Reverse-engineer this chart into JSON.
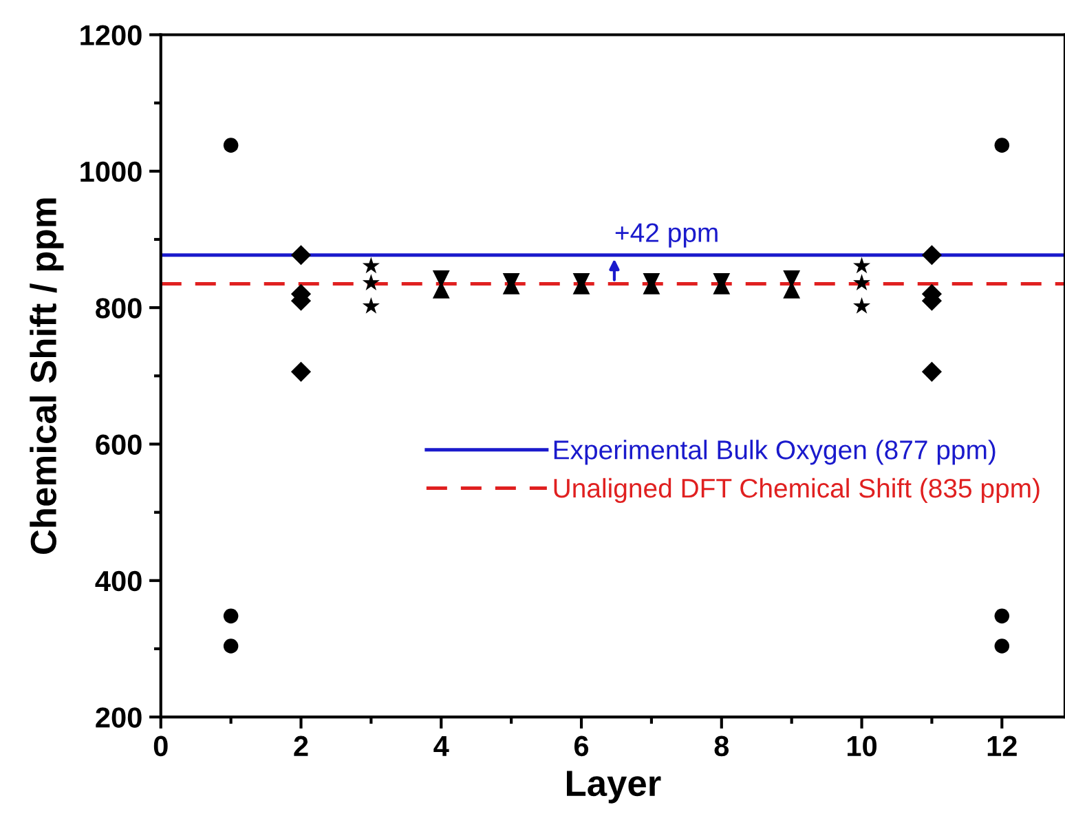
{
  "chart_data": {
    "type": "scatter",
    "xlabel": "Layer",
    "ylabel": "Chemical Shift / ppm",
    "xlim": [
      0,
      12.9
    ],
    "xticks": [
      0,
      2,
      4,
      6,
      8,
      10,
      12
    ],
    "ylim": [
      200,
      1200
    ],
    "yticks": [
      200,
      400,
      600,
      800,
      1000,
      1200
    ],
    "series": [
      {
        "color": "#000000",
        "marker": "circle",
        "x": [
          1,
          1,
          1,
          12,
          12,
          12
        ],
        "values": [
          1038,
          348,
          304,
          1038,
          348,
          304
        ]
      },
      {
        "color": "#000000",
        "marker": "diamond",
        "x": [
          2,
          2,
          2,
          2,
          11,
          11,
          11,
          11
        ],
        "values": [
          877,
          820,
          810,
          706,
          877,
          820,
          810,
          706
        ]
      },
      {
        "color": "#000000",
        "marker": "star",
        "x": [
          3,
          3,
          3,
          10,
          10,
          10
        ],
        "values": [
          861,
          836,
          802,
          861,
          836,
          802
        ]
      },
      {
        "color": "#000000",
        "marker": "triangle_down",
        "x": [
          4,
          5,
          6,
          7,
          8,
          9
        ],
        "values": [
          842,
          838,
          838,
          838,
          838,
          842
        ]
      },
      {
        "color": "#000000",
        "marker": "triangle",
        "x": [
          4,
          5,
          6,
          7,
          8,
          9
        ],
        "values": [
          826,
          832,
          832,
          832,
          832,
          826
        ]
      }
    ],
    "ref_lines": [
      {
        "axis": "y",
        "value": 877,
        "label": "Experimental Bulk Oxygen (877 ppm)",
        "color": "#1a1acc",
        "line_style": "solid"
      },
      {
        "axis": "y",
        "value": 835,
        "label": "Unaligned DFT Chemical Shift (835 ppm)",
        "color": "#e02020",
        "line_style": "dashed"
      }
    ],
    "annotations": [
      {
        "text": "+42 ppm",
        "x": 6.47,
        "y": 877
      }
    ],
    "legend": "right",
    "grid": false
  }
}
